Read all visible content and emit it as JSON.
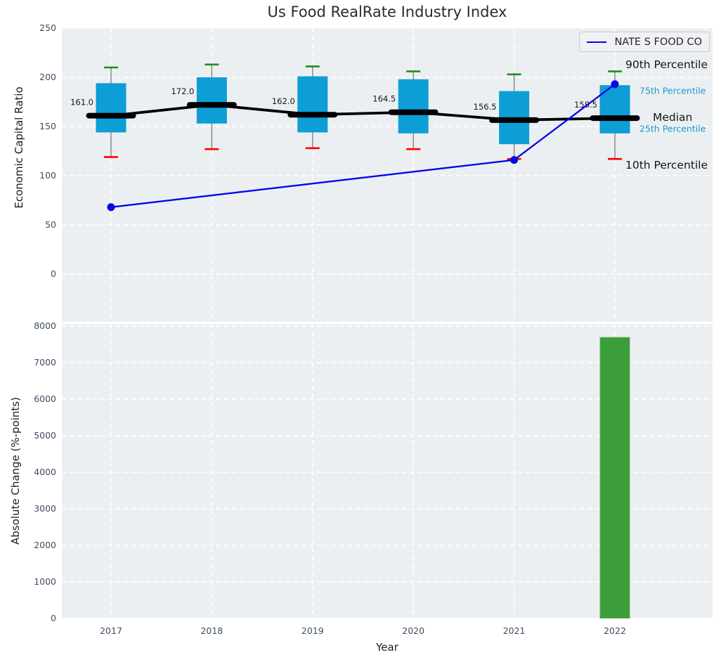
{
  "title": "Us Food RealRate Industry Index",
  "legend": {
    "series_label": "NATE S FOOD CO"
  },
  "annotations": {
    "p90": "90th Percentile",
    "p75": "75th Percentile",
    "median": "Median",
    "p25": "25th Percentile",
    "p10": "10th Percentile"
  },
  "colors": {
    "box_fill": "#0d9ed6",
    "cap_top_green": "#1e8e1e",
    "cap_bottom_red": "#fe0000",
    "whisker_gray": "#7a7a7a",
    "median_black": "#000000",
    "series_blue": "#0505e8",
    "bar_green": "#3b9e3b",
    "bar_edge_green": "#5cb15c",
    "plot_background": "#eceff1",
    "gridline_white": "#ffffff",
    "tick_label": "#3e4e63",
    "percentile_annotation_cyan": "#1599cf"
  },
  "chart_data": [
    {
      "type": "boxplot+line",
      "ylabel": "Economic Capital Ratio",
      "ylim": [
        -48,
        250
      ],
      "yticks": [
        0,
        50,
        100,
        150,
        200,
        250
      ],
      "categories": [
        "2017",
        "2018",
        "2019",
        "2020",
        "2021",
        "2022"
      ],
      "grid": true,
      "legend_position": "upper right",
      "boxes": [
        {
          "year": "2017",
          "p10": 119,
          "p25": 144,
          "median": 161.0,
          "p75": 194,
          "p90": 210,
          "median_label": "161.0"
        },
        {
          "year": "2018",
          "p10": 127,
          "p25": 153,
          "median": 172.0,
          "p75": 200,
          "p90": 213,
          "median_label": "172.0"
        },
        {
          "year": "2019",
          "p10": 128,
          "p25": 144,
          "median": 162.0,
          "p75": 201,
          "p90": 211,
          "median_label": "162.0"
        },
        {
          "year": "2020",
          "p10": 127,
          "p25": 143,
          "median": 164.5,
          "p75": 198,
          "p90": 206,
          "median_label": "164.5"
        },
        {
          "year": "2021",
          "p10": 117,
          "p25": 132,
          "median": 156.5,
          "p75": 186,
          "p90": 203,
          "median_label": "156.5"
        },
        {
          "year": "2022",
          "p10": 117,
          "p25": 143,
          "median": 158.5,
          "p75": 192,
          "p90": 206,
          "median_label": "158.5"
        }
      ],
      "series": [
        {
          "name": "NATE S FOOD CO",
          "points": [
            {
              "x": "2017",
              "y": 68
            },
            {
              "x": "2021",
              "y": 116
            },
            {
              "x": "2022",
              "y": 193
            }
          ]
        }
      ]
    },
    {
      "type": "bar",
      "ylabel": "Absolute Change (%-points)",
      "xlabel": "Year",
      "ylim": [
        0,
        8100
      ],
      "yticks": [
        0,
        1000,
        2000,
        3000,
        4000,
        5000,
        6000,
        7000,
        8000
      ],
      "categories": [
        "2017",
        "2018",
        "2019",
        "2020",
        "2021",
        "2022"
      ],
      "values": [
        null,
        null,
        null,
        null,
        null,
        7690
      ]
    }
  ]
}
